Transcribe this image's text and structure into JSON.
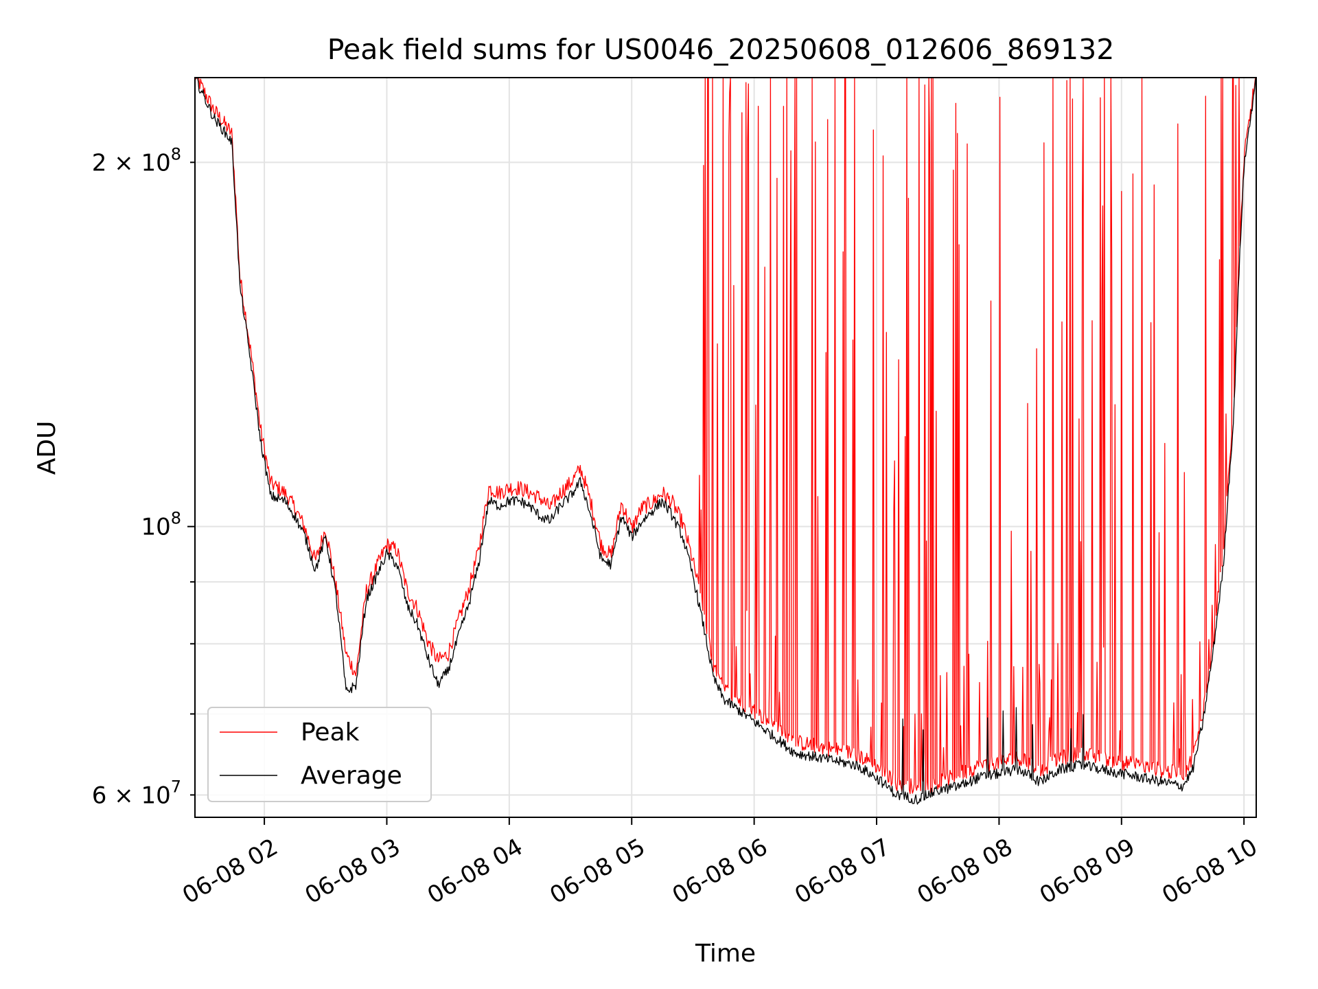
{
  "chart_data": {
    "type": "line",
    "title": "Peak field sums for US0046_20250608_012606_869132",
    "xlabel": "Time",
    "ylabel": "ADU",
    "yscale": "log",
    "grid": true,
    "legend_placement": "lower-left",
    "xlim": [
      "2025-06-08 01:26",
      "2025-06-08 10:06"
    ],
    "ylim": [
      57500000,
      235000000
    ],
    "x_ticks": [
      {
        "value": "2025-06-08 02:00",
        "label": "06-08 02"
      },
      {
        "value": "2025-06-08 03:00",
        "label": "06-08 03"
      },
      {
        "value": "2025-06-08 04:00",
        "label": "06-08 04"
      },
      {
        "value": "2025-06-08 05:00",
        "label": "06-08 05"
      },
      {
        "value": "2025-06-08 06:00",
        "label": "06-08 06"
      },
      {
        "value": "2025-06-08 07:00",
        "label": "06-08 07"
      },
      {
        "value": "2025-06-08 08:00",
        "label": "06-08 08"
      },
      {
        "value": "2025-06-08 09:00",
        "label": "06-08 09"
      },
      {
        "value": "2025-06-08 10:00",
        "label": "06-08 10"
      }
    ],
    "y_ticks_major": [
      {
        "value": 100000000,
        "label": "10",
        "exponent": "8"
      }
    ],
    "y_ticks_minor": [
      {
        "value": 60000000,
        "label": "6 × 10",
        "exponent": "7"
      },
      {
        "value": 70000000
      },
      {
        "value": 80000000
      },
      {
        "value": 90000000
      },
      {
        "value": 200000000,
        "label": "2 × 10",
        "exponent": "8"
      }
    ],
    "series": [
      {
        "name": "Peak",
        "color": "#ff0000",
        "note_spikes": "frequent upward spikes to top of axis between 05:35 and 10:00",
        "x": [
          "01:26",
          "01:35",
          "01:44",
          "01:48",
          "01:53",
          "01:58",
          "02:03",
          "02:10",
          "02:15",
          "02:20",
          "02:25",
          "02:30",
          "02:35",
          "02:40",
          "02:45",
          "02:50",
          "02:55",
          "03:00",
          "03:05",
          "03:10",
          "03:15",
          "03:20",
          "03:25",
          "03:30",
          "03:35",
          "03:40",
          "03:45",
          "03:50",
          "03:55",
          "04:00",
          "04:05",
          "04:10",
          "04:15",
          "04:20",
          "04:25",
          "04:30",
          "04:35",
          "04:40",
          "04:45",
          "04:50",
          "04:55",
          "05:00",
          "05:05",
          "05:10",
          "05:15",
          "05:20",
          "05:25",
          "05:30",
          "05:35",
          "05:40",
          "05:45",
          "05:50",
          "06:00",
          "06:10",
          "06:20",
          "06:30",
          "06:40",
          "06:50",
          "07:00",
          "07:10",
          "07:20",
          "07:30",
          "07:40",
          "07:50",
          "08:00",
          "08:10",
          "08:20",
          "08:30",
          "08:40",
          "08:50",
          "09:00",
          "09:10",
          "09:20",
          "09:30",
          "09:35",
          "09:40",
          "09:45",
          "09:50",
          "09:55",
          "10:00",
          "10:06"
        ],
        "y": [
          235000000,
          220000000,
          210000000,
          160000000,
          140000000,
          120000000,
          108000000,
          106000000,
          103000000,
          99000000,
          93000000,
          99000000,
          89000000,
          78000000,
          75000000,
          88000000,
          92000000,
          96000000,
          95000000,
          88000000,
          85000000,
          80000000,
          77000000,
          78000000,
          83000000,
          88000000,
          95000000,
          107000000,
          106000000,
          107000000,
          107000000,
          106000000,
          105000000,
          103000000,
          106000000,
          108000000,
          111000000,
          104000000,
          96000000,
          94000000,
          104000000,
          99000000,
          103000000,
          104000000,
          106000000,
          104000000,
          100000000,
          93000000,
          85000000,
          76000000,
          73000000,
          72000000,
          70000000,
          68000000,
          66000000,
          65500000,
          65000000,
          64500000,
          63000000,
          61000000,
          60500000,
          61000000,
          62000000,
          63000000,
          63500000,
          64000000,
          62500000,
          64000000,
          64500000,
          64000000,
          63500000,
          63000000,
          62500000,
          62000000,
          64000000,
          70000000,
          80000000,
          95000000,
          125000000,
          200000000,
          235000000
        ]
      },
      {
        "name": "Average",
        "color": "#000000",
        "x": [
          "01:26",
          "01:35",
          "01:44",
          "01:48",
          "01:53",
          "01:58",
          "02:03",
          "02:10",
          "02:15",
          "02:20",
          "02:25",
          "02:30",
          "02:35",
          "02:40",
          "02:45",
          "02:50",
          "02:55",
          "03:00",
          "03:05",
          "03:10",
          "03:15",
          "03:20",
          "03:25",
          "03:30",
          "03:35",
          "03:40",
          "03:45",
          "03:50",
          "03:55",
          "04:00",
          "04:05",
          "04:10",
          "04:15",
          "04:20",
          "04:25",
          "04:30",
          "04:35",
          "04:40",
          "04:45",
          "04:50",
          "04:55",
          "05:00",
          "05:05",
          "05:10",
          "05:15",
          "05:20",
          "05:25",
          "05:30",
          "05:35",
          "05:40",
          "05:45",
          "05:50",
          "06:00",
          "06:10",
          "06:20",
          "06:30",
          "06:40",
          "06:50",
          "07:00",
          "07:10",
          "07:20",
          "07:30",
          "07:40",
          "07:50",
          "08:00",
          "08:10",
          "08:20",
          "08:30",
          "08:40",
          "08:50",
          "09:00",
          "09:10",
          "09:20",
          "09:30",
          "09:35",
          "09:40",
          "09:45",
          "09:50",
          "09:55",
          "10:00",
          "10:06"
        ],
        "y": [
          235000000,
          218000000,
          208000000,
          158000000,
          138000000,
          118000000,
          106000000,
          105000000,
          102000000,
          98000000,
          92000000,
          98000000,
          88000000,
          73000000,
          74000000,
          87000000,
          91000000,
          95000000,
          93000000,
          86000000,
          83000000,
          78000000,
          74000000,
          76000000,
          81000000,
          86000000,
          93000000,
          105000000,
          104000000,
          105000000,
          105000000,
          104000000,
          102000000,
          101000000,
          104000000,
          106000000,
          109000000,
          102000000,
          94000000,
          93000000,
          102000000,
          98000000,
          101000000,
          103000000,
          105000000,
          102000000,
          98000000,
          91000000,
          83000000,
          75000000,
          72000000,
          71000000,
          69000000,
          67000000,
          65000000,
          64500000,
          64000000,
          63500000,
          62000000,
          60000000,
          59500000,
          60500000,
          61000000,
          62000000,
          62500000,
          63000000,
          61500000,
          63000000,
          63500000,
          63000000,
          62500000,
          62000000,
          61500000,
          61000000,
          63000000,
          69000000,
          79000000,
          93000000,
          123000000,
          198000000,
          235000000
        ]
      }
    ],
    "legend": [
      {
        "label": "Peak",
        "color": "#ff0000"
      },
      {
        "label": "Average",
        "color": "#000000"
      }
    ]
  }
}
